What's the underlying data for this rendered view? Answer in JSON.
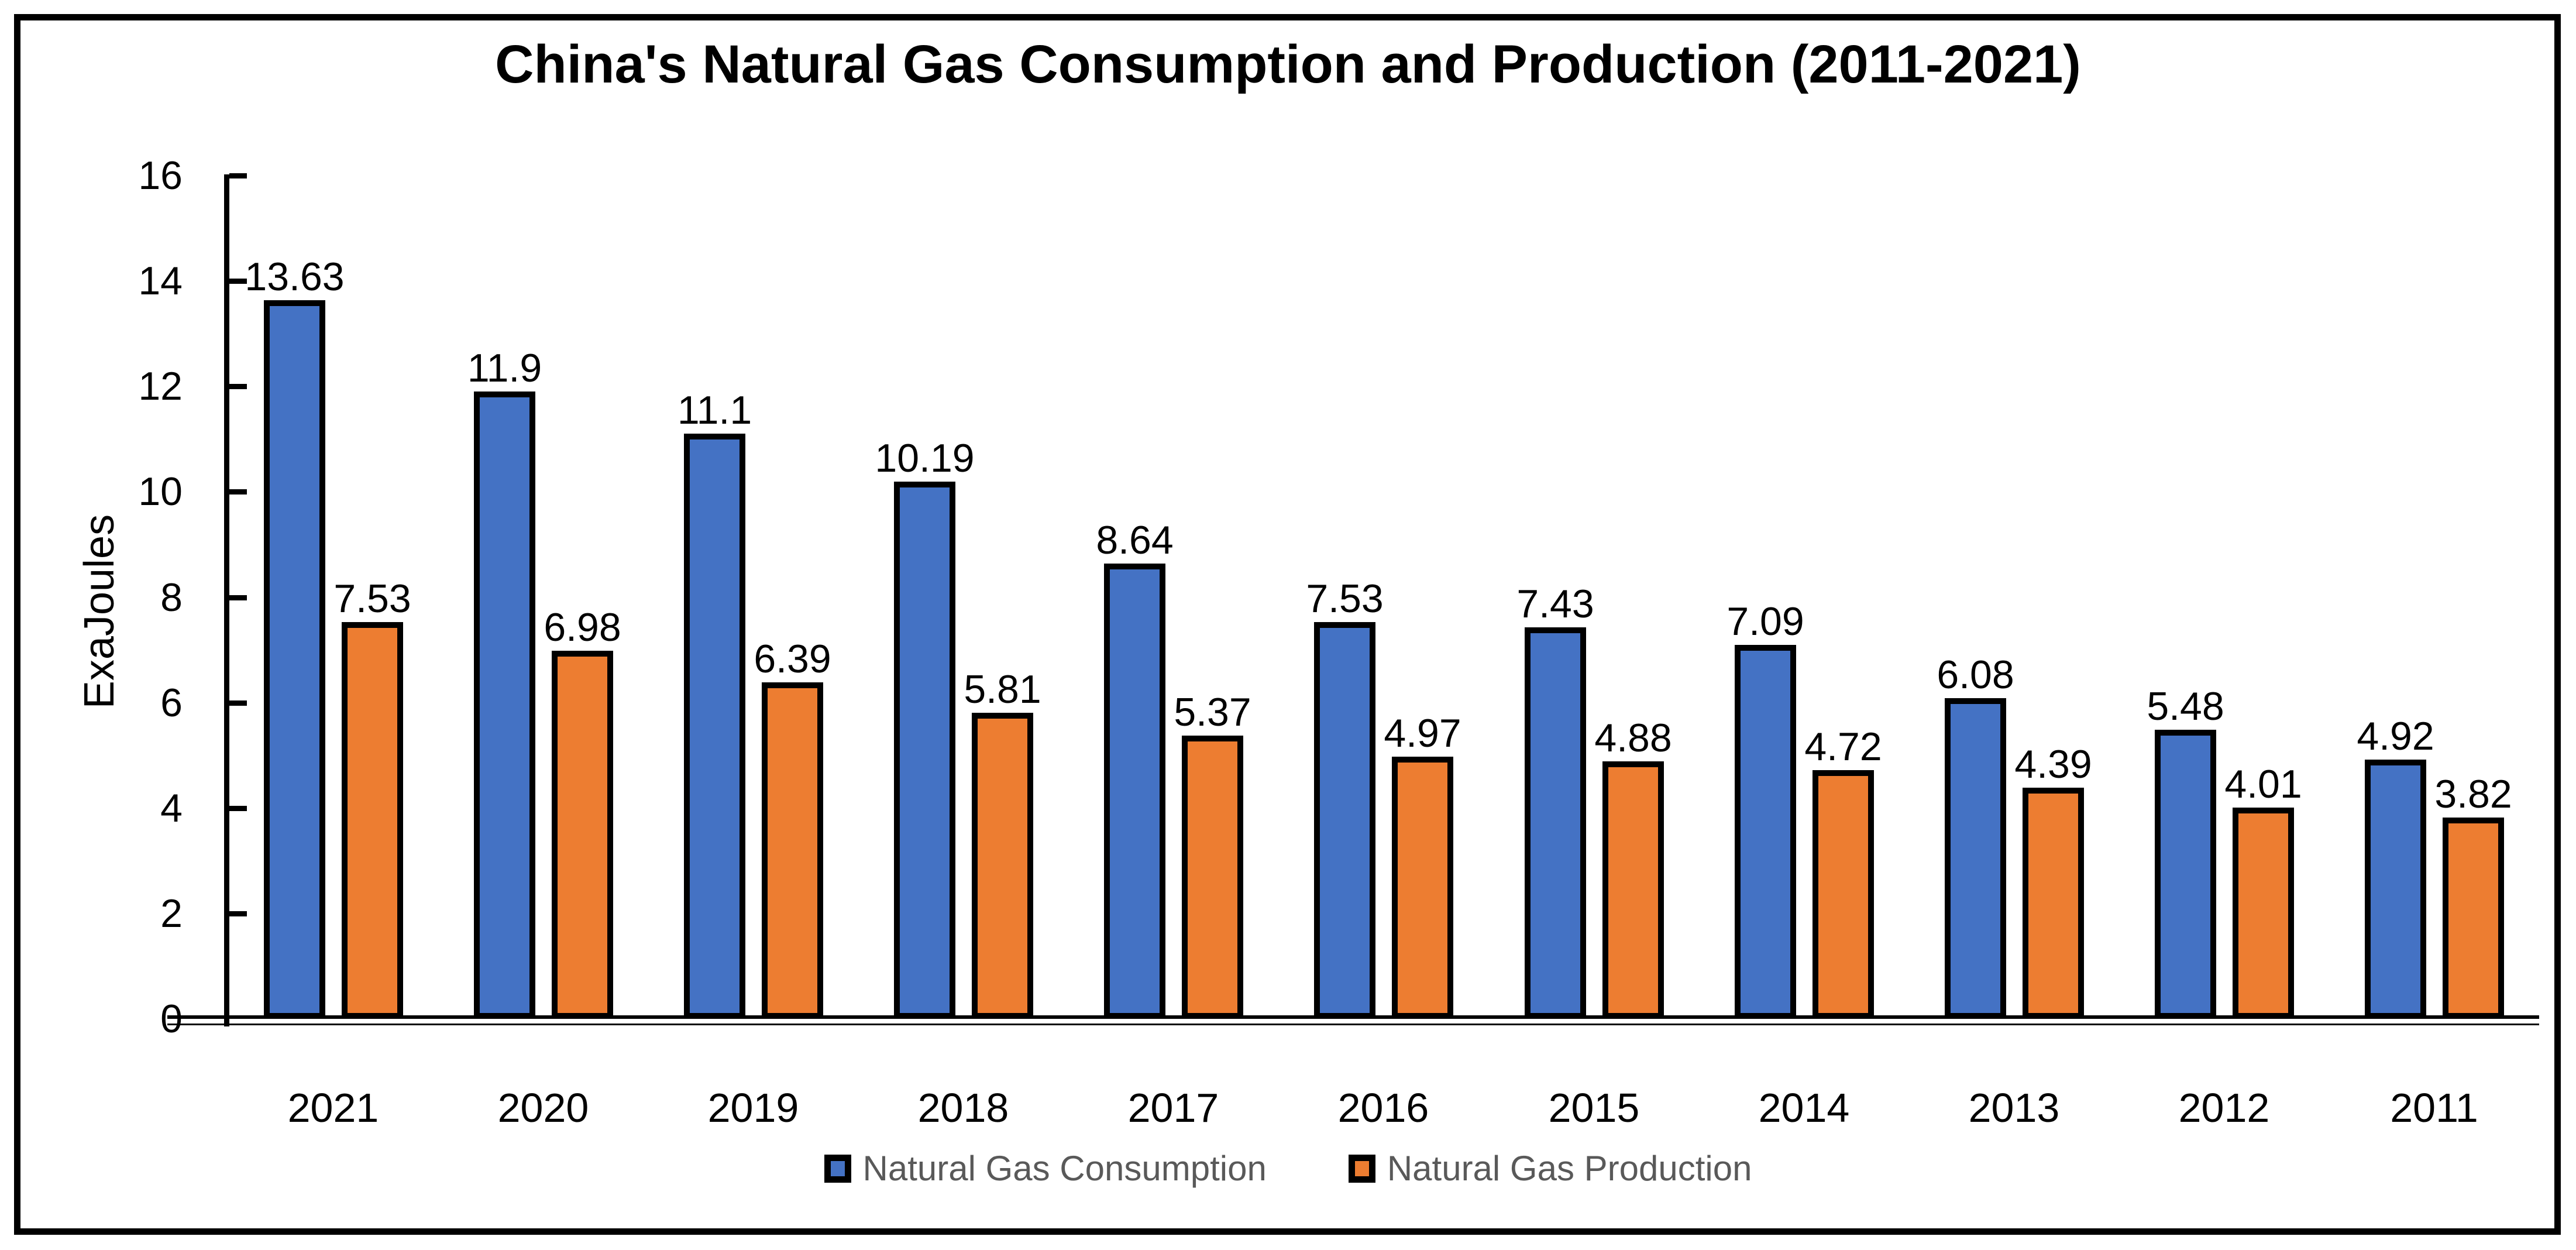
{
  "chart_data": {
    "type": "bar",
    "title": "China's Natural Gas Consumption and Production (2011-2021)",
    "xlabel": "",
    "ylabel": "ExaJoules",
    "categories": [
      "2021",
      "2020",
      "2019",
      "2018",
      "2017",
      "2016",
      "2015",
      "2014",
      "2013",
      "2012",
      "2011"
    ],
    "series": [
      {
        "name": "Natural Gas Consumption",
        "color": "#4472C4",
        "values": [
          13.63,
          11.9,
          11.1,
          10.19,
          8.64,
          7.53,
          7.43,
          7.09,
          6.08,
          5.48,
          4.92
        ]
      },
      {
        "name": "Natural Gas Production",
        "color": "#ED7D31",
        "values": [
          7.53,
          6.98,
          6.39,
          5.81,
          5.37,
          4.97,
          4.88,
          4.72,
          4.39,
          4.01,
          3.82
        ]
      }
    ],
    "ylim": [
      0,
      16
    ],
    "yticks": [
      0,
      2,
      4,
      6,
      8,
      10,
      12,
      14,
      16
    ],
    "value_labels_shown": true,
    "grid": false,
    "legend_position": "bottom",
    "bar_outline_color": "#000000",
    "axis_color": "#000000",
    "legend_text_color": "#595959",
    "background_color": "#FFFFFF"
  }
}
